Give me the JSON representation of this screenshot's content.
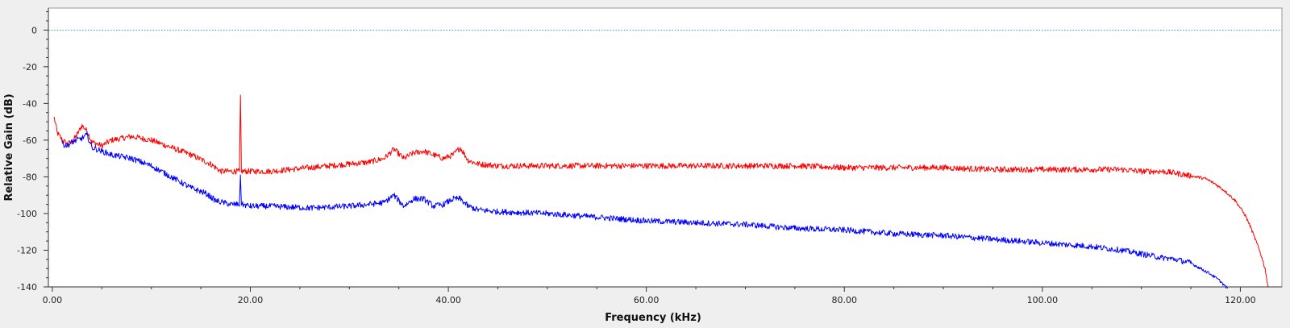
{
  "chart_data": {
    "type": "line",
    "title": "",
    "xlabel": "Frequency (kHz)",
    "ylabel": "Relative Gain (dB)",
    "xlim": [
      -0.4,
      124.2
    ],
    "ylim": [
      -140,
      12
    ],
    "grid": false,
    "legend": "none",
    "xticks": [
      {
        "value": 0,
        "label": "0.00"
      },
      {
        "value": 20,
        "label": "20.00"
      },
      {
        "value": 40,
        "label": "40.00"
      },
      {
        "value": 60,
        "label": "60.00"
      },
      {
        "value": 80,
        "label": "80.00"
      },
      {
        "value": 100,
        "label": "100.00"
      },
      {
        "value": 120,
        "label": "120.00"
      }
    ],
    "yticks": [
      {
        "value": 0,
        "label": "0"
      },
      {
        "value": -20,
        "label": "-20"
      },
      {
        "value": -40,
        "label": "-40"
      },
      {
        "value": -60,
        "label": "-60"
      },
      {
        "value": -80,
        "label": "-80"
      },
      {
        "value": -100,
        "label": "-100"
      },
      {
        "value": -120,
        "label": "-120"
      },
      {
        "value": -140,
        "label": "-140"
      }
    ],
    "reference_line": {
      "y": 0,
      "color": "#2aa0b8",
      "style": "dotted"
    },
    "series": [
      {
        "color": "#ff0000",
        "x": [
          0.2,
          0.5,
          1.0,
          1.5,
          2.0,
          2.5,
          3.0,
          3.5,
          4.0,
          5.0,
          6.0,
          8.0,
          10.0,
          12.0,
          14.0,
          16.0,
          17.0,
          18.5,
          18.9,
          19.0,
          19.1,
          20.0,
          22.0,
          24.0,
          26.0,
          28.0,
          30.0,
          32.0,
          33.5,
          34.5,
          35.5,
          36.5,
          37.5,
          38.5,
          39.5,
          40.5,
          41.2,
          42.0,
          43.0,
          45.0,
          50.0,
          55.0,
          60.0,
          65.0,
          70.0,
          75.0,
          80.0,
          85.0,
          90.0,
          95.0,
          100.0,
          105.0,
          108.0,
          110.0,
          112.0,
          113.5,
          114.5,
          115.5,
          116.5,
          117.5,
          118.5,
          119.5,
          120.5,
          121.0,
          121.5,
          122.0,
          122.5,
          122.8
        ],
        "y": [
          -48,
          -56,
          -60,
          -62,
          -61,
          -57,
          -52,
          -55,
          -61,
          -63,
          -60,
          -58,
          -60,
          -64,
          -68,
          -73,
          -77,
          -77,
          -77,
          -37,
          -77,
          -77,
          -77,
          -76,
          -75,
          -74,
          -73,
          -72,
          -70,
          -65,
          -70,
          -67,
          -66,
          -68,
          -70,
          -68,
          -64,
          -71,
          -73,
          -74,
          -74,
          -74,
          -74,
          -74,
          -74,
          -74,
          -75,
          -75,
          -75,
          -76,
          -76,
          -76,
          -76,
          -77,
          -77,
          -78,
          -79,
          -80,
          -81,
          -84,
          -88,
          -93,
          -101,
          -107,
          -114,
          -121,
          -130,
          -140
        ]
      },
      {
        "color": "#0000ff",
        "x": [
          1.0,
          1.5,
          2.0,
          3.0,
          3.5,
          4.0,
          5.0,
          6.0,
          8.0,
          10.0,
          12.0,
          14.0,
          15.5,
          16.5,
          18.0,
          18.9,
          19.0,
          19.1,
          20.0,
          22.0,
          26.0,
          30.0,
          32.0,
          33.5,
          34.5,
          35.5,
          36.5,
          37.5,
          38.5,
          39.5,
          40.5,
          41.2,
          42.0,
          43.0,
          45.0,
          50.0,
          55.0,
          60.0,
          65.0,
          70.0,
          75.0,
          80.0,
          85.0,
          90.0,
          95.0,
          100.0,
          105.0,
          108.0,
          110.0,
          112.0,
          113.5,
          115.0,
          116.0,
          117.0,
          118.0,
          118.7
        ],
        "y": [
          -62,
          -63,
          -61,
          -59,
          -57,
          -64,
          -66,
          -68,
          -70,
          -74,
          -80,
          -86,
          -89,
          -93,
          -95,
          -95,
          -79,
          -95,
          -96,
          -96,
          -97,
          -96,
          -95,
          -94,
          -90,
          -96,
          -92,
          -92,
          -96,
          -95,
          -92,
          -92,
          -96,
          -98,
          -99,
          -100,
          -102,
          -104,
          -105,
          -106,
          -108,
          -109,
          -111,
          -112,
          -114,
          -116,
          -118,
          -120,
          -122,
          -124,
          -125,
          -127,
          -130,
          -133,
          -137,
          -141
        ]
      }
    ]
  }
}
